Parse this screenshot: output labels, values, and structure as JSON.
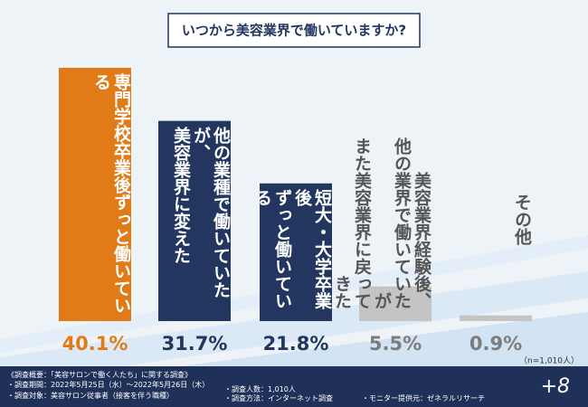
{
  "chart_data": {
    "type": "bar",
    "title": "いつから美容業界で働いていますか?",
    "categories": [
      "専門学校卒業後ずっと働いている",
      "他の業種で働いていたが、\n美容業界に変えた",
      "短大・大学卒業後\nずっと働いている",
      "美容業界経験後、\n他の業界で働いていたが\nまた美容業界に戻ってきた",
      "その他"
    ],
    "values": [
      40.1,
      31.7,
      21.8,
      5.5,
      0.9
    ],
    "value_labels": [
      "40.1%",
      "31.7%",
      "21.8%",
      "5.5%",
      "0.9%"
    ],
    "colors": [
      "#e07b17",
      "#22365f",
      "#22365f",
      "#c4c4c4",
      "#c4c4c4"
    ],
    "label_colors": [
      "#e07b17",
      "#22365f",
      "#22365f",
      "#7d7d7d",
      "#7d7d7d"
    ],
    "note": "（n=1,010人）"
  },
  "footer": {
    "heading": "《調査概要：「美容サロンで働く人たち」に関する調査》",
    "lines": [
      "・調査期間：2022年5月25日（水）～2022年5月26日（木）",
      "・調査人数：1,010人",
      "・調査対象：美容サロン従事者（接客を伴う職種）",
      "・調査方法：インターネット調査",
      "・モニター提供元：ゼネラルリサーチ"
    ],
    "logo": "+8"
  }
}
